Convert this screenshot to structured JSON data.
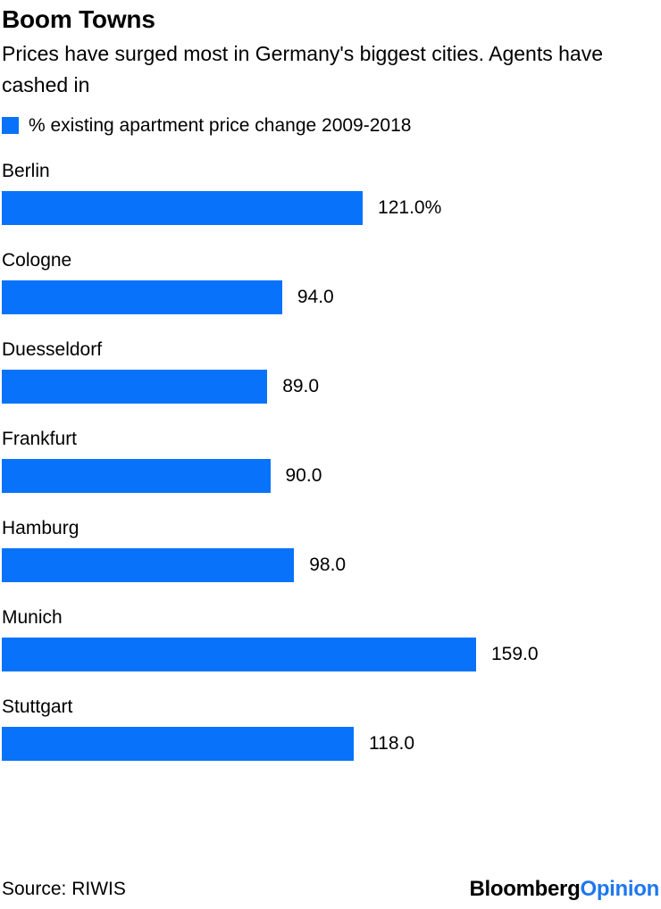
{
  "header": {
    "title": "Boom Towns",
    "subtitle": "Prices have surged most in Germany's biggest cities. Agents have cashed in"
  },
  "legend": {
    "label": "% existing apartment price change 2009-2018"
  },
  "chart_data": {
    "type": "bar",
    "orientation": "horizontal",
    "title": "Boom Towns",
    "subtitle": "Prices have surged most in Germany's biggest cities. Agents have cashed in",
    "legend_label": "% existing apartment price change 2009-2018",
    "categories": [
      "Berlin",
      "Cologne",
      "Duesseldorf",
      "Frankfurt",
      "Hamburg",
      "Munich",
      "Stuttgart"
    ],
    "values": [
      121.0,
      94.0,
      89.0,
      90.0,
      98.0,
      159.0,
      118.0
    ],
    "value_labels": [
      "121.0%",
      "94.0",
      "89.0",
      "90.0",
      "98.0",
      "159.0",
      "118.0"
    ],
    "xlabel": "",
    "ylabel": "",
    "xlim": [
      0,
      221
    ],
    "grid": false,
    "legend_position": "top-left",
    "bar_color": "#0873fa"
  },
  "footer": {
    "source": "Source: RIWIS",
    "logo_black": "Bloomberg",
    "logo_blue": "Opinion"
  },
  "colors": {
    "accent_blue": "#0873fa",
    "logo_blue": "#1e77f0",
    "text": "#000000",
    "background": "#ffffff"
  }
}
